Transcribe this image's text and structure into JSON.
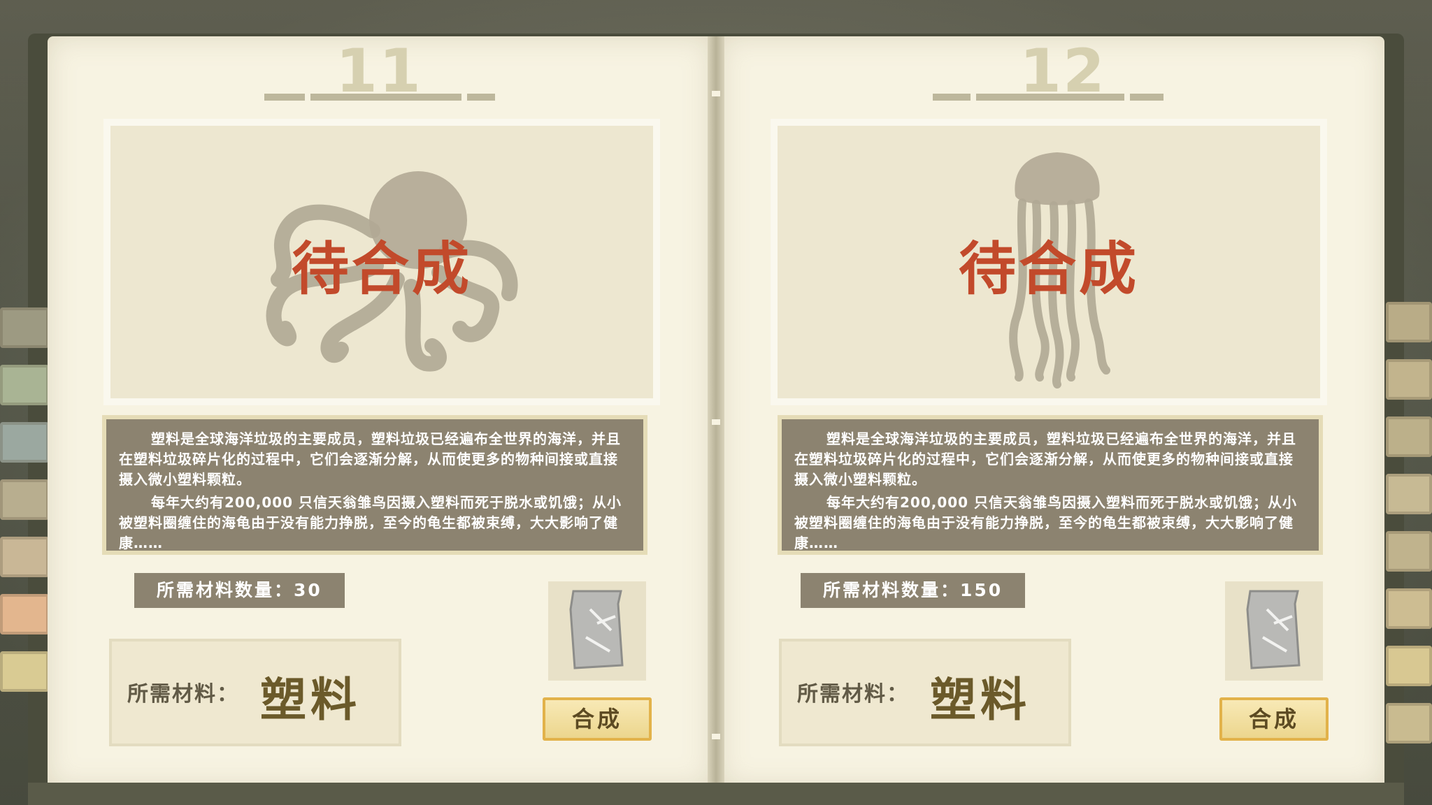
{
  "book": {
    "left_page": {
      "page_number": "11",
      "creature_icon": "octopus-silhouette",
      "status": "待合成",
      "description": [
        "塑料是全球海洋垃圾的主要成员，塑料垃圾已经遍布全世界的海洋，并且在塑料垃圾碎片化的过程中，它们会逐渐分解，从而使更多的物种间接或直接摄入微小塑料颗粒。",
        "每年大约有200,000 只信天翁雏鸟因摄入塑料而死于脱水或饥饿；从小被塑料圈缠住的海龟由于没有能力挣脱，至今的龟生都被束缚，大大影响了健康……"
      ],
      "quantity_text": "所需材料数量：30",
      "material_label": "所需材料：",
      "material_value": "塑料",
      "item_icon": "plastic-bag-icon",
      "craft_label": "合成"
    },
    "right_page": {
      "page_number": "12",
      "creature_icon": "jellyfish-silhouette",
      "status": "待合成",
      "description": [
        "塑料是全球海洋垃圾的主要成员，塑料垃圾已经遍布全世界的海洋，并且在塑料垃圾碎片化的过程中，它们会逐渐分解，从而使更多的物种间接或直接摄入微小塑料颗粒。",
        "每年大约有200,000 只信天翁雏鸟因摄入塑料而死于脱水或饥饿；从小被塑料圈缠住的海龟由于没有能力挣脱，至今的龟生都被束缚，大大影响了健康……"
      ],
      "quantity_text": "所需材料数量：150",
      "material_label": "所需材料：",
      "material_value": "塑料",
      "item_icon": "plastic-bag-icon",
      "craft_label": "合成"
    }
  },
  "colors": {
    "page": "#f7f3e2",
    "status_red": "#c24a2b",
    "text_box": "#8c8370",
    "button_gold": "#ecd68d"
  }
}
